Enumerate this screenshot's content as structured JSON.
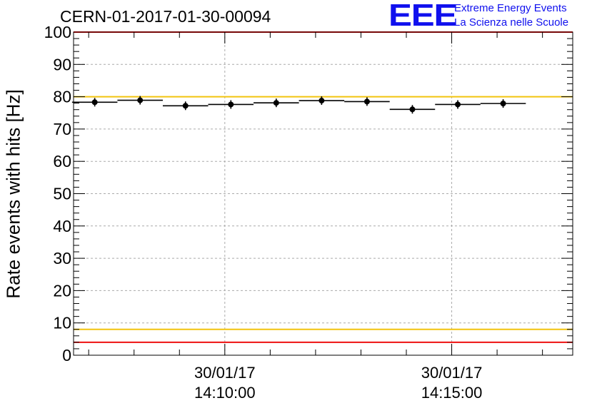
{
  "header": {
    "run_title": "CERN-01-2017-01-30-00094",
    "logo": {
      "mark": "EEE",
      "line1": "Extreme Energy Events",
      "line2": "La Scienza nelle Scuole"
    }
  },
  "chart_data": {
    "type": "scatter",
    "title": "CERN-01-2017-01-30-00094",
    "xlabel": "",
    "ylabel": "Rate events with hits [Hz]",
    "ylim": [
      0,
      100
    ],
    "yticks": [
      0,
      10,
      20,
      30,
      40,
      50,
      60,
      70,
      80,
      90,
      100
    ],
    "xlim": [
      "30/01/17 14:06:40",
      "30/01/17 14:17:40"
    ],
    "xticks": [
      {
        "date": "30/01/17",
        "time": "14:10:00"
      },
      {
        "date": "30/01/17",
        "time": "14:15:00"
      }
    ],
    "grid": true,
    "series": [
      {
        "x": [
          "14:07:08",
          "14:08:08",
          "14:09:08",
          "14:10:08",
          "14:11:08",
          "14:12:08",
          "14:13:08",
          "14:14:08",
          "14:15:08",
          "14:16:08"
        ],
        "y": [
          78.3,
          78.9,
          77.2,
          77.6,
          78.1,
          78.8,
          78.5,
          76.1,
          77.6,
          77.9
        ],
        "bin_start": [
          "14:06:38",
          "14:07:38",
          "14:08:38",
          "14:09:38",
          "14:10:38",
          "14:11:38",
          "14:12:38",
          "14:13:38",
          "14:14:38",
          "14:15:38"
        ],
        "bin_end": [
          "14:07:38",
          "14:08:38",
          "14:09:38",
          "14:10:38",
          "14:11:38",
          "14:12:38",
          "14:13:38",
          "14:14:38",
          "14:15:38",
          "14:16:38"
        ]
      }
    ],
    "reference_lines": [
      {
        "y": 100,
        "color": "#ee1111"
      },
      {
        "y": 80,
        "color": "#f2c40f"
      },
      {
        "y": 8,
        "color": "#f2c40f"
      },
      {
        "y": 4,
        "color": "#ee1111"
      }
    ],
    "colors": {
      "markers": "#000000",
      "grid": "#aaaaaa"
    }
  }
}
